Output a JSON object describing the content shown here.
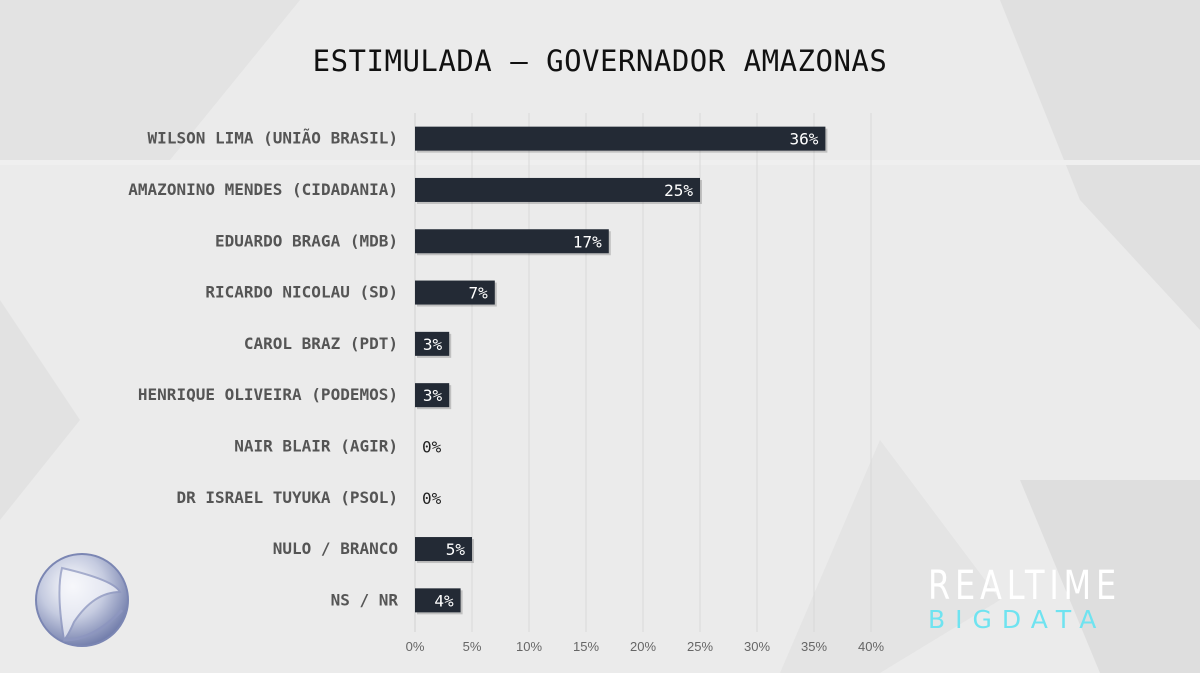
{
  "chart_data": {
    "type": "bar",
    "orientation": "horizontal",
    "title": "ESTIMULADA – GOVERNADOR AMAZONAS",
    "categories": [
      "WILSON LIMA (UNIÃO BRASIL)",
      "AMAZONINO MENDES (CIDADANIA)",
      "EDUARDO BRAGA (MDB)",
      "RICARDO NICOLAU (SD)",
      "CAROL BRAZ (PDT)",
      "HENRIQUE OLIVEIRA (PODEMOS)",
      "NAIR BLAIR (AGIR)",
      "DR ISRAEL TUYUKA (PSOL)",
      "NULO / BRANCO",
      "NS / NR"
    ],
    "values": [
      36,
      25,
      17,
      7,
      3,
      3,
      0,
      0,
      5,
      4
    ],
    "value_labels": [
      "36%",
      "25%",
      "17%",
      "7%",
      "3%",
      "3%",
      "0%",
      "0%",
      "5%",
      "4%"
    ],
    "xlabel": "",
    "ylabel": "",
    "xlim": [
      0,
      40
    ],
    "x_ticks": [
      0,
      5,
      10,
      15,
      20,
      25,
      30,
      35,
      40
    ],
    "x_tick_labels": [
      "0%",
      "5%",
      "10%",
      "15%",
      "20%",
      "25%",
      "30%",
      "35%",
      "40%"
    ],
    "grid": true,
    "bar_color": "#232a35"
  },
  "branding": {
    "realtime": "REALTIME",
    "bigdata": "BIGDATA",
    "bigdata_color": "#6fe3f0",
    "broadcaster_logo": "record-logo"
  }
}
